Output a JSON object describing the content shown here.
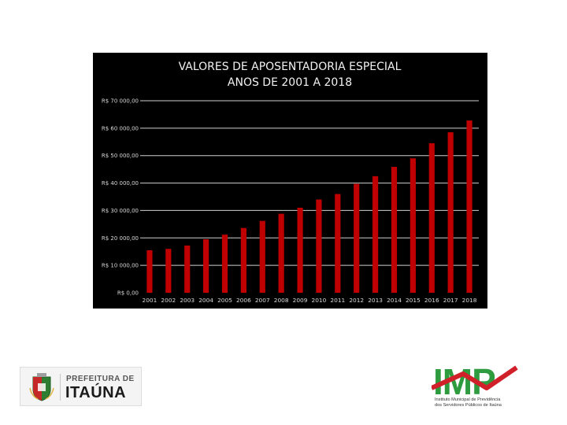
{
  "chart_data": {
    "type": "bar",
    "title_lines": [
      "VALORES DE APOSENTADORIA ESPECIAL",
      "ANOS DE 2001 A 2018"
    ],
    "categories": [
      "2001",
      "2002",
      "2003",
      "2004",
      "2005",
      "2006",
      "2007",
      "2008",
      "2009",
      "2010",
      "2011",
      "2012",
      "2013",
      "2014",
      "2015",
      "2016",
      "2017",
      "2018"
    ],
    "series": [
      {
        "values": [
          15500,
          16000,
          17200,
          19500,
          21200,
          23600,
          26200,
          28800,
          31000,
          34000,
          36000,
          39700,
          42500,
          45900,
          49000,
          54500,
          58500,
          62800
        ],
        "color": "#c00000"
      }
    ],
    "ylim": [
      0,
      70000
    ],
    "yticks": [
      0,
      10000,
      20000,
      30000,
      40000,
      50000,
      60000,
      70000
    ],
    "ytick_labels": [
      "R$ 0,00",
      "R$ 10 000,00",
      "R$ 20 000,00",
      "R$ 30 000,00",
      "R$ 40 000,00",
      "R$ 50 000,00",
      "R$ 60 000,00",
      "R$ 70 000,00"
    ],
    "grid": true,
    "background": "#000000"
  },
  "logos": {
    "left": {
      "line1": "PREFEITURA DE",
      "line2": "ITAÚNA"
    },
    "right": {
      "name": "IMP",
      "tagline": [
        "Instituto Municipal de Previdência",
        "dos Servidores Públicos de Itaúna"
      ],
      "colors": {
        "green": "#2e9b3e",
        "red": "#d0202a"
      }
    }
  }
}
